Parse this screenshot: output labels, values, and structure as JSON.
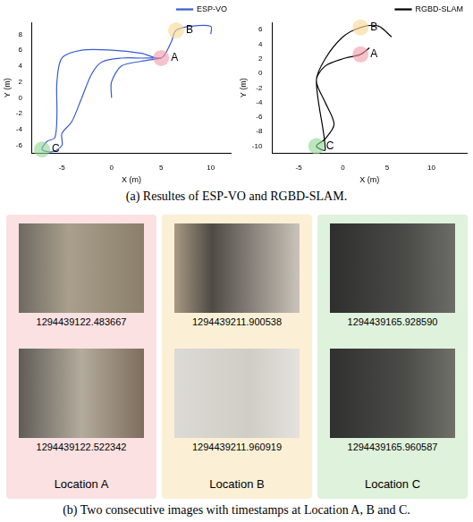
{
  "chart_data": [
    {
      "type": "line",
      "xlabel": "X (m)",
      "ylabel": "Y (m)",
      "xlim": [
        -8,
        12
      ],
      "xticks": [
        -5,
        0,
        5,
        10
      ],
      "ylim": [
        -7,
        9.5
      ],
      "yticks": [
        -6,
        -4,
        -2,
        0,
        2,
        4,
        6,
        8
      ],
      "grid": false,
      "legend": "upper right",
      "series": [
        {
          "name": "ESP-VO",
          "color": "#3a5bd0",
          "x": [
            10,
            10,
            8,
            6.5,
            6,
            5,
            3,
            0,
            -3,
            -5,
            -5.5,
            -5.5,
            -5.7,
            -6.5,
            -7,
            -6,
            -5,
            -5,
            -4,
            -3,
            -2,
            -1,
            1,
            3,
            5,
            3,
            1,
            0,
            0
          ],
          "y": [
            8,
            9,
            9,
            8.5,
            7,
            5,
            5.6,
            6,
            6,
            5,
            2,
            -2,
            -5,
            -5.5,
            -6.5,
            -6.8,
            -6,
            -4.5,
            -3,
            0,
            3,
            4.5,
            5,
            5,
            5,
            4.6,
            4,
            2,
            0
          ]
        }
      ],
      "annotations": [
        {
          "text": "A",
          "x": 5,
          "y": 5,
          "color": "#f19aa6"
        },
        {
          "text": "B",
          "x": 6.5,
          "y": 8.5,
          "color": "#f7d88f"
        },
        {
          "text": "C",
          "x": -7,
          "y": -6.5,
          "color": "#8fd68f"
        }
      ]
    },
    {
      "type": "line",
      "xlabel": "X (m)",
      "ylabel": "Y (m)",
      "xlim": [
        -8,
        14
      ],
      "xticks": [
        -5,
        0,
        5,
        10
      ],
      "ylim": [
        -11,
        7
      ],
      "yticks": [
        -10,
        -8,
        -6,
        -4,
        -2,
        0,
        2,
        4,
        6
      ],
      "grid": false,
      "legend": "upper right",
      "series": [
        {
          "name": "RGBD-SLAM",
          "color": "#000000",
          "x": [
            5.5,
            4,
            2,
            0,
            -2,
            -3,
            -2,
            -1,
            -2,
            -3,
            -2,
            -3,
            -2,
            0,
            2,
            3
          ],
          "y": [
            5,
            6.5,
            6.3,
            5,
            2,
            -1,
            -4,
            -7,
            -9,
            -10,
            -10.5,
            -1,
            1,
            2,
            2.6,
            3.5
          ]
        }
      ],
      "annotations": [
        {
          "text": "A",
          "x": 2,
          "y": 2.6,
          "color": "#f19aa6"
        },
        {
          "text": "B",
          "x": 2,
          "y": 6.3,
          "color": "#f7d88f"
        },
        {
          "text": "C",
          "x": -3,
          "y": -10,
          "color": "#8fd68f"
        }
      ]
    }
  ],
  "caption_a": "(a) Resultes of ESP-VO and RGBD-SLAM.",
  "panels": [
    {
      "label": "Location A",
      "color": "#fbe1e1",
      "timestamps": [
        "1294439122.483667",
        "1294439122.522342"
      ]
    },
    {
      "label": "Location B",
      "color": "#fbf0d6",
      "timestamps": [
        "1294439211.900538",
        "1294439211.960919"
      ]
    },
    {
      "label": "Location C",
      "color": "#dff2dc",
      "timestamps": [
        "1294439165.928590",
        "1294439165.960587"
      ]
    }
  ],
  "caption_b": "(b) Two consecutive images with timestamps at Location A, B and C."
}
